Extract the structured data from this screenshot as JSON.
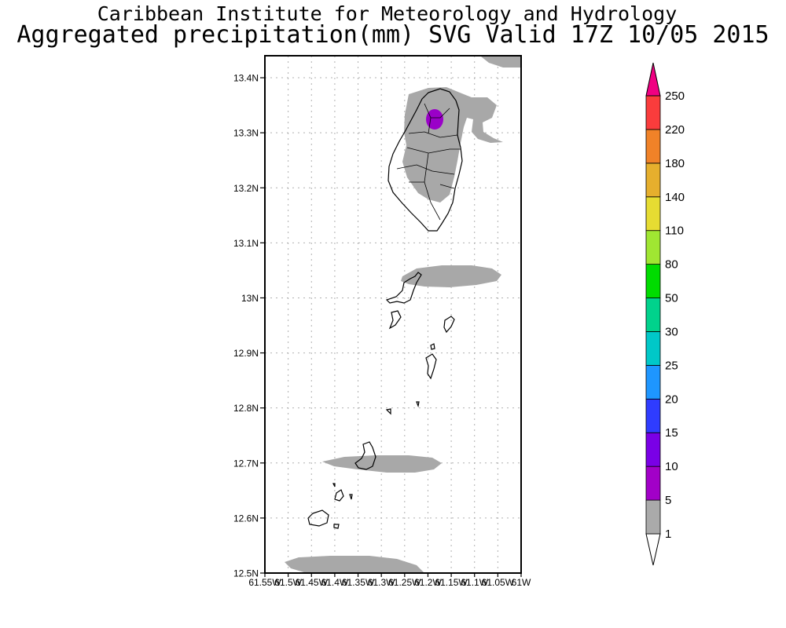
{
  "header": {
    "institute": "Caribbean Institute for Meteorology and Hydrology",
    "product": "Aggregated precipitation(mm) SVG Valid 17Z 10/05 2015"
  },
  "map": {
    "lat_ticks": [
      "13.4N",
      "13.3N",
      "13.2N",
      "13.1N",
      "13N",
      "12.9N",
      "12.8N",
      "12.7N",
      "12.6N",
      "12.5N"
    ],
    "lat_values": [
      13.4,
      13.3,
      13.2,
      13.1,
      13.0,
      12.9,
      12.8,
      12.7,
      12.6,
      12.5
    ],
    "lon_ticks": [
      "61.55W",
      "61.5W",
      "61.45W",
      "61.4W",
      "61.35W",
      "61.3W",
      "61.25W",
      "61.2W",
      "61.15W",
      "61.1W",
      "61.05W",
      "61W"
    ],
    "lat_range": [
      12.5,
      13.44
    ],
    "lon_range": [
      -61.55,
      -61.0
    ],
    "colors": {
      "rain_low": "#a8a8a8",
      "rain_peak": "#9a00c8",
      "coast": "#000000"
    }
  },
  "colorbar": {
    "levels": [
      "1",
      "5",
      "10",
      "15",
      "20",
      "25",
      "30",
      "50",
      "80",
      "110",
      "140",
      "180",
      "220",
      "250"
    ],
    "colors": [
      "#aaaaaa",
      "#a200c8",
      "#7a00e6",
      "#2f3cff",
      "#1e96ff",
      "#00c8c8",
      "#00d28c",
      "#00dc00",
      "#a0e632",
      "#e6dc32",
      "#e6af2d",
      "#f08228",
      "#fa3c3c",
      "#f00082"
    ]
  }
}
